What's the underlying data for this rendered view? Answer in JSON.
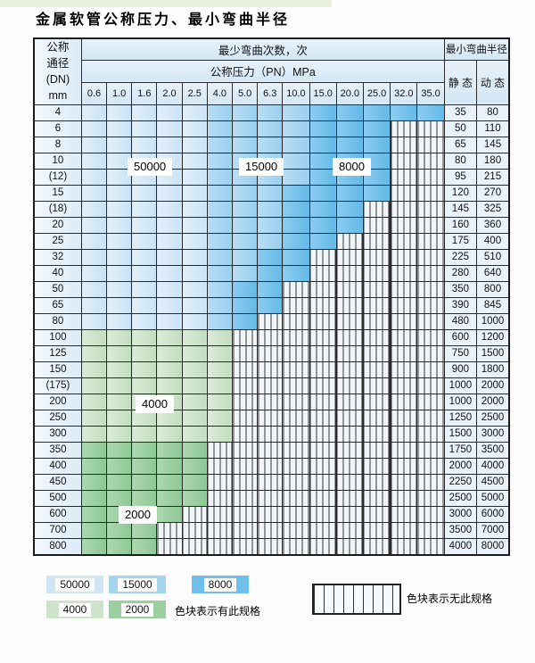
{
  "title": "金属软管公称压力、最小弯曲半径",
  "table": {
    "corner": {
      "line1": "公称",
      "line2": "通径",
      "line3": "(DN)",
      "line4": "mm"
    },
    "bend_cycles_header": "最少弯曲次数，次",
    "pn_header": "公称压力（PN）MPa",
    "radius_header": "最小弯曲半径",
    "static_label": "静 态",
    "dynamic_label": "动 态",
    "pn_columns": [
      "0.6",
      "1.0",
      "1.6",
      "2.0",
      "2.5",
      "4.0",
      "5.0",
      "6.3",
      "10.0",
      "15.0",
      "20.0",
      "25.0",
      "32.0",
      "35.0"
    ],
    "rows": [
      {
        "dn": "4",
        "static": "35",
        "dynamic": "80",
        "cells": [
          "b1",
          "b1",
          "b1",
          "b1",
          "b1",
          "b2",
          "b2",
          "b2",
          "b2",
          "b3",
          "b3",
          "b3",
          "b3",
          "b3"
        ]
      },
      {
        "dn": "6",
        "static": "50",
        "dynamic": "110",
        "cells": [
          "b1",
          "b1",
          "b1",
          "b1",
          "b1",
          "b2",
          "b2",
          "b2",
          "b2",
          "b3",
          "b3",
          "b3",
          "x",
          "x"
        ]
      },
      {
        "dn": "8",
        "static": "65",
        "dynamic": "145",
        "cells": [
          "b1",
          "b1",
          "b1",
          "b1",
          "b1",
          "b2",
          "b2",
          "b2",
          "b2",
          "b3",
          "b3",
          "b3",
          "x",
          "x"
        ]
      },
      {
        "dn": "10",
        "static": "80",
        "dynamic": "180",
        "cells": [
          "b1",
          "b1",
          "b1",
          "b1",
          "b1",
          "b2",
          "b2",
          "b2",
          "b2",
          "b3",
          "b3",
          "b3",
          "x",
          "x"
        ]
      },
      {
        "dn": "(12)",
        "static": "95",
        "dynamic": "215",
        "cells": [
          "b1",
          "b1",
          "b1",
          "b1",
          "b1",
          "b2",
          "b2",
          "b2",
          "b2",
          "b3",
          "b3",
          "b3",
          "x",
          "x"
        ]
      },
      {
        "dn": "15",
        "static": "120",
        "dynamic": "270",
        "cells": [
          "b1",
          "b1",
          "b1",
          "b1",
          "b1",
          "b2",
          "b2",
          "b2",
          "b3",
          "b3",
          "b3",
          "b3",
          "x",
          "x"
        ]
      },
      {
        "dn": "(18)",
        "static": "145",
        "dynamic": "325",
        "cells": [
          "b1",
          "b1",
          "b1",
          "b1",
          "b1",
          "b2",
          "b2",
          "b2",
          "b3",
          "b3",
          "b3",
          "x",
          "x",
          "x"
        ]
      },
      {
        "dn": "20",
        "static": "160",
        "dynamic": "360",
        "cells": [
          "b1",
          "b1",
          "b1",
          "b1",
          "b1",
          "b2",
          "b2",
          "b2",
          "b3",
          "b3",
          "b3",
          "x",
          "x",
          "x"
        ]
      },
      {
        "dn": "25",
        "static": "175",
        "dynamic": "400",
        "cells": [
          "b1",
          "b1",
          "b1",
          "b1",
          "b1",
          "b2",
          "b2",
          "b2",
          "b3",
          "b3",
          "x",
          "x",
          "x",
          "x"
        ]
      },
      {
        "dn": "32",
        "static": "225",
        "dynamic": "510",
        "cells": [
          "b1",
          "b1",
          "b1",
          "b1",
          "b1",
          "b2",
          "b2",
          "b3",
          "b3",
          "x",
          "x",
          "x",
          "x",
          "x"
        ]
      },
      {
        "dn": "40",
        "static": "280",
        "dynamic": "640",
        "cells": [
          "b1",
          "b1",
          "b1",
          "b1",
          "b1",
          "b2",
          "b2",
          "b3",
          "b3",
          "x",
          "x",
          "x",
          "x",
          "x"
        ]
      },
      {
        "dn": "50",
        "static": "350",
        "dynamic": "800",
        "cells": [
          "b1",
          "b1",
          "b1",
          "b1",
          "b1",
          "b2",
          "b3",
          "b3",
          "x",
          "x",
          "x",
          "x",
          "x",
          "x"
        ]
      },
      {
        "dn": "65",
        "static": "390",
        "dynamic": "845",
        "cells": [
          "b1",
          "b1",
          "b1",
          "b1",
          "b1",
          "b2",
          "b3",
          "b3",
          "x",
          "x",
          "x",
          "x",
          "x",
          "x"
        ]
      },
      {
        "dn": "80",
        "static": "480",
        "dynamic": "1000",
        "cells": [
          "b1",
          "b1",
          "b1",
          "b1",
          "b1",
          "b2",
          "b3",
          "x",
          "x",
          "x",
          "x",
          "x",
          "x",
          "x"
        ]
      },
      {
        "dn": "100",
        "static": "600",
        "dynamic": "1200",
        "cells": [
          "g1",
          "g1",
          "g1",
          "g1",
          "g1",
          "g1",
          "x",
          "x",
          "x",
          "x",
          "x",
          "x",
          "x",
          "x"
        ]
      },
      {
        "dn": "125",
        "static": "750",
        "dynamic": "1500",
        "cells": [
          "g1",
          "g1",
          "g1",
          "g1",
          "g1",
          "g1",
          "x",
          "x",
          "x",
          "x",
          "x",
          "x",
          "x",
          "x"
        ]
      },
      {
        "dn": "150",
        "static": "900",
        "dynamic": "1800",
        "cells": [
          "g1",
          "g1",
          "g1",
          "g1",
          "g1",
          "g1",
          "x",
          "x",
          "x",
          "x",
          "x",
          "x",
          "x",
          "x"
        ]
      },
      {
        "dn": "(175)",
        "static": "1000",
        "dynamic": "2000",
        "cells": [
          "g1",
          "g1",
          "g1",
          "g1",
          "g1",
          "g1",
          "x",
          "x",
          "x",
          "x",
          "x",
          "x",
          "x",
          "x"
        ]
      },
      {
        "dn": "200",
        "static": "1000",
        "dynamic": "2000",
        "cells": [
          "g1",
          "g1",
          "g1",
          "g1",
          "g1",
          "g1",
          "x",
          "x",
          "x",
          "x",
          "x",
          "x",
          "x",
          "x"
        ]
      },
      {
        "dn": "250",
        "static": "1250",
        "dynamic": "2500",
        "cells": [
          "g1",
          "g1",
          "g1",
          "g1",
          "g1",
          "g1",
          "x",
          "x",
          "x",
          "x",
          "x",
          "x",
          "x",
          "x"
        ]
      },
      {
        "dn": "300",
        "static": "1500",
        "dynamic": "3000",
        "cells": [
          "g1",
          "g1",
          "g1",
          "g1",
          "g1",
          "g1",
          "x",
          "x",
          "x",
          "x",
          "x",
          "x",
          "x",
          "x"
        ]
      },
      {
        "dn": "350",
        "static": "1750",
        "dynamic": "3500",
        "cells": [
          "g2",
          "g2",
          "g2",
          "g2",
          "g2",
          "x",
          "x",
          "x",
          "x",
          "x",
          "x",
          "x",
          "x",
          "x"
        ]
      },
      {
        "dn": "400",
        "static": "2000",
        "dynamic": "4000",
        "cells": [
          "g2",
          "g2",
          "g2",
          "g2",
          "g2",
          "x",
          "x",
          "x",
          "x",
          "x",
          "x",
          "x",
          "x",
          "x"
        ]
      },
      {
        "dn": "450",
        "static": "2250",
        "dynamic": "4500",
        "cells": [
          "g2",
          "g2",
          "g2",
          "g2",
          "g2",
          "x",
          "x",
          "x",
          "x",
          "x",
          "x",
          "x",
          "x",
          "x"
        ]
      },
      {
        "dn": "500",
        "static": "2500",
        "dynamic": "5000",
        "cells": [
          "g2",
          "g2",
          "g2",
          "g2",
          "g2",
          "x",
          "x",
          "x",
          "x",
          "x",
          "x",
          "x",
          "x",
          "x"
        ]
      },
      {
        "dn": "600",
        "static": "3000",
        "dynamic": "6000",
        "cells": [
          "g2",
          "g2",
          "g2",
          "g2",
          "x",
          "x",
          "x",
          "x",
          "x",
          "x",
          "x",
          "x",
          "x",
          "x"
        ]
      },
      {
        "dn": "700",
        "static": "3500",
        "dynamic": "7000",
        "cells": [
          "g2",
          "g2",
          "g2",
          "x",
          "x",
          "x",
          "x",
          "x",
          "x",
          "x",
          "x",
          "x",
          "x",
          "x"
        ]
      },
      {
        "dn": "800",
        "static": "4000",
        "dynamic": "8000",
        "cells": [
          "g2",
          "g2",
          "g2",
          "x",
          "x",
          "x",
          "x",
          "x",
          "x",
          "x",
          "x",
          "x",
          "x",
          "x"
        ]
      }
    ]
  },
  "region_labels": {
    "r50000": "50000",
    "r15000": "15000",
    "r8000": "8000",
    "r4000": "4000",
    "r2000": "2000"
  },
  "legend": {
    "blue": [
      {
        "code": "b1",
        "value": "50000"
      },
      {
        "code": "b2",
        "value": "15000"
      },
      {
        "code": "b3",
        "value": "8000"
      }
    ],
    "green": [
      {
        "code": "g1",
        "value": "4000"
      },
      {
        "code": "g2",
        "value": "2000"
      }
    ],
    "has_spec_note": "色块表示有此规格",
    "no_spec_note": "色块表示无此规格"
  },
  "colors": {
    "cycles_50000": "#cfe6f6",
    "cycles_15000": "#a3d5f1",
    "cycles_8000": "#6ec0ea",
    "cycles_4000": "#cee4ca",
    "cycles_2000": "#9bcf9f",
    "no_spec_hatch_bg": "#f1f6fa"
  }
}
